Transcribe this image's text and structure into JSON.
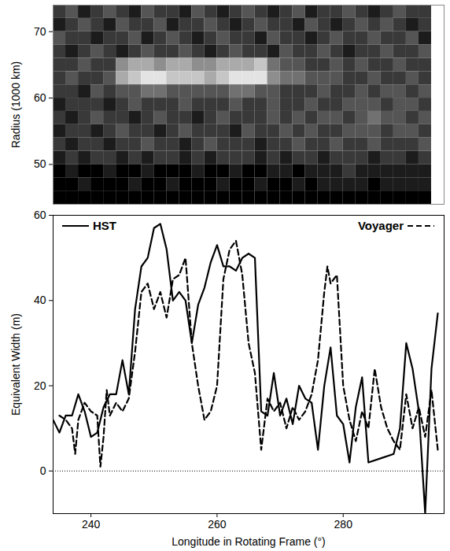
{
  "chart_data": [
    {
      "type": "heatmap",
      "ylabel": "Radius (1000 km)",
      "xlim": [
        234,
        296
      ],
      "ylim": [
        44,
        74
      ],
      "yticks": [
        50,
        60,
        70
      ],
      "tick_labels": "y",
      "zlim": [
        0,
        9
      ],
      "longitude": [
        235,
        237,
        239,
        241,
        243,
        245,
        247,
        249,
        251,
        253,
        255,
        257,
        259,
        261,
        263,
        265,
        267,
        269,
        271,
        273,
        275,
        277,
        279,
        281,
        283,
        285,
        287,
        289,
        291,
        293
      ],
      "radius": [
        73,
        71,
        69,
        67,
        65,
        63,
        61,
        59,
        57,
        55,
        53,
        51,
        49,
        47,
        45
      ],
      "cells": [
        [
          2,
          3,
          1,
          2,
          3,
          2,
          1,
          3,
          2,
          2,
          1,
          3,
          2,
          1,
          2,
          3,
          2,
          1,
          2,
          3,
          1,
          2,
          2,
          3,
          2,
          1,
          2,
          3,
          2,
          2
        ],
        [
          1,
          2,
          3,
          2,
          1,
          3,
          2,
          2,
          3,
          1,
          2,
          2,
          3,
          2,
          1,
          2,
          3,
          2,
          2,
          1,
          3,
          2,
          1,
          2,
          3,
          2,
          3,
          2,
          1,
          2
        ],
        [
          3,
          2,
          2,
          1,
          2,
          2,
          3,
          1,
          2,
          3,
          2,
          1,
          2,
          3,
          2,
          2,
          1,
          3,
          2,
          2,
          1,
          2,
          3,
          2,
          2,
          3,
          2,
          2,
          3,
          1
        ],
        [
          2,
          1,
          2,
          3,
          2,
          1,
          2,
          3,
          2,
          2,
          3,
          2,
          1,
          2,
          3,
          2,
          2,
          1,
          3,
          2,
          2,
          3,
          2,
          1,
          2,
          2,
          3,
          2,
          2,
          3
        ],
        [
          2,
          2,
          3,
          2,
          2,
          5,
          6,
          6,
          5,
          6,
          6,
          5,
          5,
          6,
          6,
          6,
          7,
          4,
          3,
          3,
          2,
          2,
          3,
          2,
          3,
          2,
          2,
          3,
          2,
          2
        ],
        [
          2,
          3,
          2,
          2,
          3,
          6,
          7,
          8,
          8,
          7,
          7,
          7,
          6,
          7,
          8,
          8,
          8,
          5,
          4,
          4,
          3,
          3,
          3,
          2,
          2,
          3,
          2,
          2,
          3,
          2
        ],
        [
          2,
          2,
          1,
          3,
          2,
          3,
          3,
          4,
          4,
          3,
          3,
          3,
          3,
          3,
          4,
          4,
          3,
          3,
          2,
          2,
          2,
          3,
          2,
          2,
          3,
          2,
          3,
          3,
          2,
          3
        ],
        [
          1,
          2,
          2,
          2,
          1,
          2,
          3,
          2,
          2,
          2,
          3,
          2,
          2,
          2,
          3,
          2,
          2,
          3,
          2,
          2,
          3,
          2,
          2,
          3,
          3,
          3,
          2,
          3,
          3,
          2
        ],
        [
          2,
          1,
          2,
          3,
          2,
          2,
          1,
          2,
          3,
          2,
          2,
          1,
          2,
          3,
          2,
          2,
          2,
          3,
          2,
          3,
          2,
          3,
          3,
          2,
          3,
          4,
          3,
          3,
          2,
          3
        ],
        [
          1,
          2,
          2,
          1,
          2,
          3,
          2,
          2,
          1,
          2,
          3,
          2,
          2,
          2,
          1,
          3,
          2,
          2,
          3,
          2,
          3,
          2,
          2,
          3,
          3,
          3,
          2,
          3,
          3,
          2
        ],
        [
          2,
          1,
          2,
          2,
          1,
          2,
          2,
          3,
          2,
          2,
          1,
          2,
          3,
          2,
          2,
          2,
          1,
          2,
          2,
          3,
          2,
          2,
          3,
          2,
          2,
          3,
          2,
          2,
          2,
          3
        ],
        [
          1,
          2,
          1,
          2,
          2,
          1,
          2,
          1,
          2,
          2,
          1,
          2,
          1,
          2,
          2,
          2,
          1,
          2,
          1,
          2,
          2,
          1,
          2,
          2,
          2,
          1,
          2,
          2,
          1,
          2
        ],
        [
          0,
          1,
          0,
          0,
          1,
          0,
          0,
          1,
          0,
          0,
          0,
          1,
          0,
          0,
          1,
          0,
          0,
          1,
          1,
          0,
          1,
          1,
          1,
          2,
          1,
          1,
          1,
          1,
          1,
          1
        ],
        [
          0,
          0,
          1,
          0,
          0,
          0,
          1,
          0,
          0,
          1,
          0,
          0,
          0,
          1,
          0,
          0,
          1,
          0,
          0,
          1,
          0,
          1,
          1,
          1,
          1,
          0,
          1,
          1,
          1,
          1
        ],
        [
          0,
          0,
          0,
          0,
          0,
          0,
          0,
          0,
          0,
          0,
          0,
          0,
          0,
          0,
          0,
          0,
          0,
          0,
          0,
          0,
          0,
          0,
          0,
          0,
          0,
          0,
          0,
          0,
          0,
          0
        ]
      ]
    },
    {
      "type": "line",
      "xlabel": "Longitude in Rotating Frame (°)",
      "ylabel": "Equivalent Width (m)",
      "xlim": [
        234,
        296
      ],
      "xticks": [
        240,
        260,
        280
      ],
      "ylim": [
        -10,
        60
      ],
      "yticks": [
        0,
        20,
        40,
        60
      ],
      "reference_y": 0,
      "legend": "top",
      "series": [
        {
          "name": "HST",
          "color": "#000000",
          "line_style": "solid",
          "x": [
            234,
            235,
            236,
            237,
            238,
            239,
            240,
            241,
            242,
            243,
            244,
            245,
            246,
            247,
            248,
            249,
            250,
            251,
            252,
            253,
            254,
            255,
            256,
            257,
            258,
            259,
            260,
            261,
            262,
            263,
            264,
            265,
            266,
            267,
            268,
            269,
            270,
            271,
            272,
            273,
            274,
            275,
            276,
            277,
            278,
            279,
            280,
            281,
            282,
            283,
            284,
            286,
            288,
            289,
            290,
            291,
            292,
            293,
            294,
            295
          ],
          "values": [
            12,
            9,
            13,
            13,
            18,
            14,
            8,
            9,
            15,
            18,
            18,
            26,
            18,
            38,
            48,
            50,
            57,
            58,
            52,
            40,
            42,
            40,
            30,
            39,
            43,
            49,
            53,
            48,
            48,
            47,
            50,
            51,
            50,
            14,
            13,
            23,
            13,
            17,
            11,
            20,
            17,
            16,
            5,
            20,
            29,
            13,
            11,
            2,
            15,
            22,
            2,
            3,
            4,
            10,
            30,
            24,
            14,
            -10,
            24,
            37
          ]
        },
        {
          "name": "Voyager",
          "color": "#000000",
          "line_style": "dashed",
          "x": [
            235,
            236,
            237,
            237.5,
            238,
            239,
            240,
            241,
            241.5,
            242,
            242.5,
            243,
            244,
            245,
            246,
            247,
            248,
            249,
            250,
            251,
            252,
            253,
            254,
            255,
            256,
            257,
            258,
            259,
            260,
            261,
            262,
            263,
            264,
            265,
            266,
            267,
            268,
            269,
            270,
            271,
            272,
            273,
            274,
            275,
            276,
            277,
            277.5,
            278,
            279,
            280,
            281,
            282,
            283,
            284,
            285,
            286,
            287,
            288,
            289,
            290,
            291,
            292,
            293,
            294,
            295
          ],
          "values": [
            13,
            12,
            10,
            4,
            12,
            16,
            14,
            13,
            1,
            8,
            19,
            13,
            16,
            14,
            17,
            28,
            42,
            44,
            38,
            42,
            36,
            45,
            46,
            50,
            30,
            20,
            12,
            14,
            20,
            45,
            52,
            54,
            46,
            30,
            23,
            5,
            17,
            14,
            16,
            10,
            15,
            12,
            14,
            18,
            26,
            42,
            48,
            44,
            46,
            20,
            12,
            7,
            14,
            10,
            24,
            15,
            10,
            7,
            5,
            18,
            10,
            15,
            8,
            19,
            5
          ]
        }
      ]
    }
  ]
}
